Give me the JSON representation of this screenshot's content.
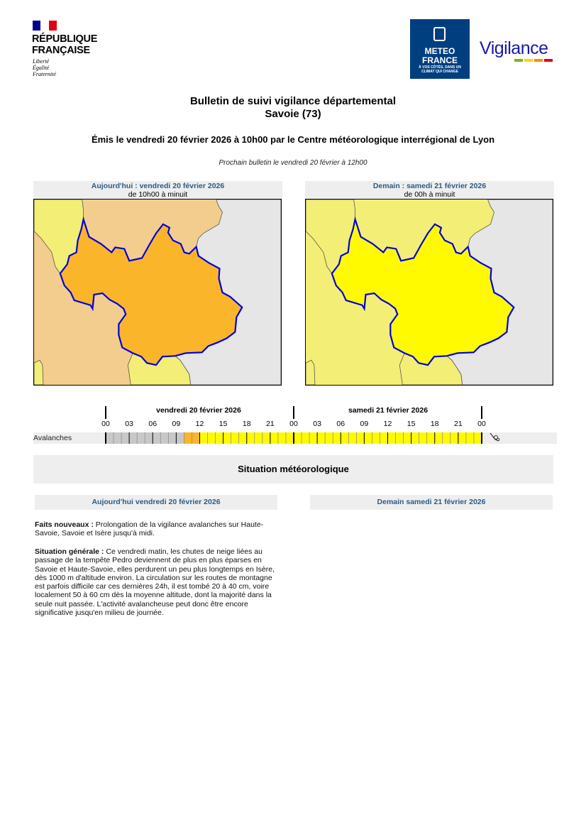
{
  "header": {
    "republic_name_line1": "RÉPUBLIQUE",
    "republic_name_line2": "FRANÇAISE",
    "motto": [
      "Liberté",
      "Égalité",
      "Fraternité"
    ],
    "meteo_logo_line1": "METEO",
    "meteo_logo_line2": "FRANCE",
    "meteo_logo_tagline_line1": "À VOS CÔTÉS, DANS UN",
    "meteo_logo_tagline_line2": "CLIMAT QUI CHANGE",
    "vigilance_logo": "Vigilance",
    "vigilance_colors": [
      "#7ab51d",
      "#ffd400",
      "#ff8c00",
      "#e3001b"
    ]
  },
  "title": {
    "line1": "Bulletin de suivi vigilance départemental",
    "line2": "Savoie (73)",
    "issued": "Émis le vendredi 20 février 2026 à 10h00 par le Centre météorologique interrégional de Lyon",
    "next_bulletin": "Prochain bulletin le vendredi 20 février à 12h00"
  },
  "maps": [
    {
      "title": "Aujourd'hui : vendredi 20 février 2026",
      "period": "de 10h00 à minuit",
      "department_level": "orange",
      "colors": {
        "department": "#fbb52a",
        "neighbors": "#f2cd8e",
        "north_west": "#f3ee75",
        "south": "#f3ee75",
        "foreign": "#e6e6e6",
        "border": "#0000e0"
      }
    },
    {
      "title": "Demain : samedi 21 février 2026",
      "period": "de 00h à minuit",
      "department_level": "yellow",
      "colors": {
        "department": "#fffa00",
        "neighbors": "#f3ee75",
        "north_west": "#f3ee75",
        "south": "#f3ee75",
        "foreign": "#e6e6e6",
        "border": "#0000e0"
      }
    }
  ],
  "timeline": {
    "days": [
      "vendredi 20 février 2026",
      "samedi 21 février 2026"
    ],
    "hour_labels": [
      "00",
      "03",
      "06",
      "09",
      "12",
      "15",
      "18",
      "21",
      "00",
      "03",
      "06",
      "09",
      "12",
      "15",
      "18",
      "21",
      "00"
    ],
    "phenomenon": "Avalanches",
    "phenomenon_icon": "avalanche-icon",
    "segments": [
      {
        "from_hour": 0,
        "to_hour": 10,
        "level": "none",
        "color": "#c8c8c8"
      },
      {
        "from_hour": 10,
        "to_hour": 12,
        "level": "orange",
        "color": "#fbb52a"
      },
      {
        "from_hour": 12,
        "to_hour": 48,
        "level": "yellow",
        "color": "#fffa00"
      }
    ]
  },
  "situation": {
    "heading": "Situation météorologique",
    "today_heading": "Aujourd'hui vendredi 20 février 2026",
    "tomorrow_heading": "Demain samedi 21 février 2026",
    "news_label": "Faits nouveaux :",
    "news_text": " Prolongation de la vigilance avalanches sur Haute-Savoie, Savoie et Isère jusqu'à midi.",
    "general_label": "Situation générale :",
    "general_text": " Ce vendredi matin, les chutes de neige liées au passage de la tempête Pedro deviennent de plus en plus éparses en Savoie et Haute-Savoie, elles perdurent un peu plus longtemps en Isère, dès 1000 m d'altitude environ. La circulation sur les routes de montagne est parfois difficile car ces dernières 24h, il est tombé 20 à 40 cm, voire localement 50 à 60 cm dès la moyenne altitude, dont la majorité dans la seule nuit passée. L'activité avalancheuse peut donc être encore significative jusqu'en milieu de journée."
  }
}
